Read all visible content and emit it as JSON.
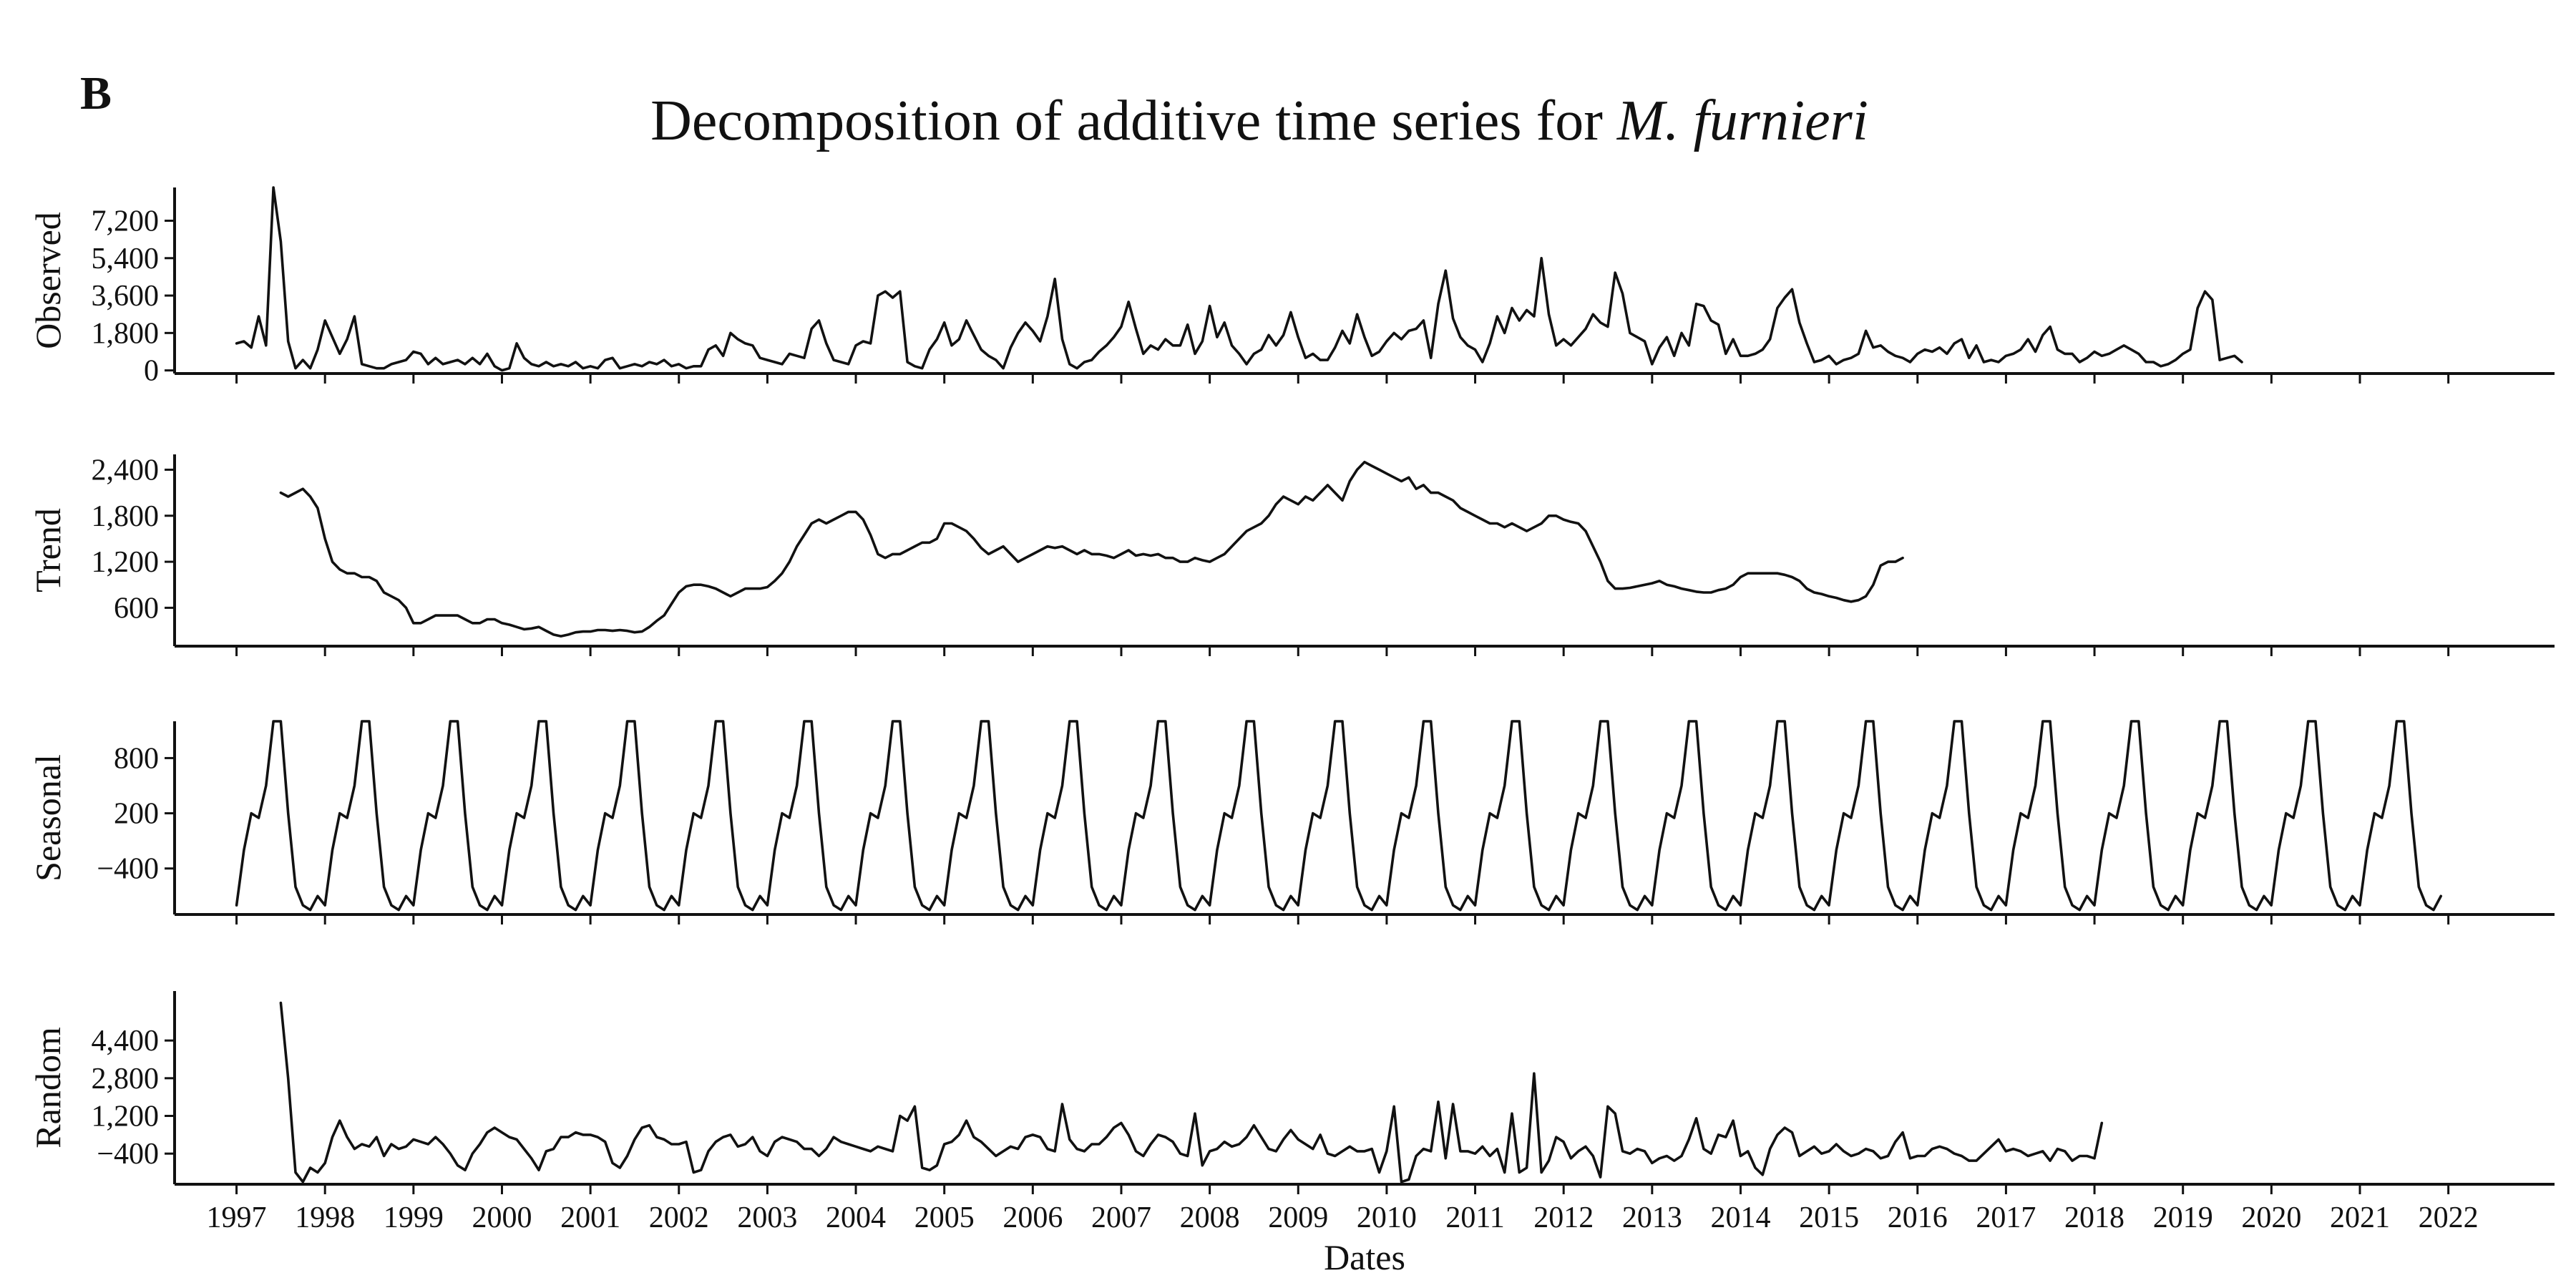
{
  "panel_label": "B",
  "title": {
    "prefix": "Decomposition of additive time series for ",
    "species": "M. furnieri"
  },
  "xlabel": "Dates",
  "x_ticks": [
    "1997",
    "1998",
    "1999",
    "2000",
    "2001",
    "2002",
    "2003",
    "2004",
    "2005",
    "2006",
    "2007",
    "2008",
    "2009",
    "2010",
    "2011",
    "2012",
    "2013",
    "2014",
    "2015",
    "2016",
    "2017",
    "2018",
    "2019",
    "2020",
    "2021",
    "2022"
  ],
  "colors": {
    "line": "#111111",
    "background": "#ffffff"
  },
  "chart_data": [
    {
      "type": "line",
      "name": "observed",
      "ylabel": "Observed",
      "xlim": [
        1996.3,
        2023.2
      ],
      "ylim": [
        -150,
        8800
      ],
      "yticks": [
        0,
        1800,
        3600,
        5400,
        7200
      ],
      "yticks_labels": [
        "0",
        "1,800",
        "3,600",
        "5,400",
        "7,200"
      ],
      "x_start": 1997.0,
      "x_step": 0.08333,
      "values": [
        1300,
        1400,
        1100,
        2600,
        1200,
        8800,
        6200,
        1400,
        100,
        500,
        100,
        1000,
        2400,
        1600,
        800,
        1500,
        2600,
        300,
        200,
        100,
        100,
        300,
        400,
        500,
        900,
        800,
        300,
        600,
        300,
        400,
        500,
        300,
        600,
        300,
        800,
        200,
        0,
        100,
        1300,
        600,
        300,
        200,
        400,
        200,
        300,
        200,
        400,
        100,
        200,
        100,
        500,
        600,
        100,
        200,
        300,
        200,
        400,
        300,
        500,
        200,
        300,
        100,
        200,
        200,
        1000,
        1200,
        700,
        1800,
        1500,
        1300,
        1200,
        600,
        500,
        400,
        300,
        800,
        700,
        600,
        2000,
        2400,
        1300,
        500,
        400,
        300,
        1200,
        1400,
        1300,
        3600,
        3800,
        3500,
        3800,
        400,
        200,
        100,
        1000,
        1500,
        2300,
        1200,
        1500,
        2400,
        1700,
        1000,
        700,
        500,
        100,
        1100,
        1800,
        2300,
        1900,
        1400,
        2600,
        4400,
        1500,
        300,
        100,
        400,
        500,
        900,
        1200,
        1600,
        2100,
        3300,
        2000,
        800,
        1200,
        1000,
        1500,
        1200,
        1200,
        2200,
        800,
        1400,
        3100,
        1600,
        2300,
        1200,
        800,
        300,
        800,
        1000,
        1700,
        1200,
        1700,
        2800,
        1600,
        600,
        800,
        500,
        500,
        1100,
        1900,
        1300,
        2700,
        1600,
        700,
        900,
        1400,
        1800,
        1500,
        1900,
        2000,
        2400,
        600,
        3200,
        4800,
        2500,
        1600,
        1200,
        1000,
        400,
        1300,
        2600,
        1800,
        3000,
        2400,
        2900,
        2600,
        5400,
        2700,
        1200,
        1500,
        1200,
        1600,
        2000,
        2700,
        2300,
        2100,
        4700,
        3700,
        1800,
        1600,
        1400,
        300,
        1100,
        1600,
        700,
        1800,
        1200,
        3200,
        3100,
        2400,
        2200,
        800,
        1500,
        700,
        700,
        800,
        1000,
        1500,
        3000,
        3500,
        3900,
        2300,
        1300,
        400,
        500,
        700,
        300,
        500,
        600,
        800,
        1900,
        1100,
        1200,
        900,
        700,
        600,
        400,
        800,
        1000,
        900,
        1100,
        800,
        1300,
        1500,
        600,
        1200,
        400,
        500,
        400,
        700,
        800,
        1000,
        1500,
        900,
        1700,
        2100,
        1000,
        800,
        800,
        400,
        600,
        900,
        700,
        800,
        1000,
        1200,
        1000,
        800,
        400,
        400,
        200,
        300,
        500,
        800,
        1000,
        3000,
        3800,
        3400,
        500,
        600,
        700,
        400
      ]
    },
    {
      "type": "line",
      "name": "trend",
      "ylabel": "Trend",
      "xlim": [
        1996.3,
        2023.2
      ],
      "ylim": [
        100,
        2600
      ],
      "yticks": [
        600,
        1200,
        1800,
        2400
      ],
      "yticks_labels": [
        "600",
        "1,200",
        "1,800",
        "2,400"
      ],
      "x_start": 1997.5,
      "x_step": 0.08333,
      "values": [
        2100,
        2050,
        2100,
        2150,
        2050,
        1900,
        1500,
        1200,
        1100,
        1050,
        1050,
        1000,
        1000,
        950,
        800,
        750,
        700,
        600,
        400,
        400,
        450,
        500,
        500,
        500,
        500,
        450,
        400,
        400,
        450,
        450,
        400,
        380,
        350,
        320,
        330,
        350,
        300,
        250,
        230,
        250,
        280,
        290,
        290,
        310,
        310,
        300,
        310,
        300,
        280,
        290,
        350,
        430,
        500,
        650,
        800,
        880,
        900,
        900,
        880,
        850,
        800,
        750,
        800,
        850,
        850,
        850,
        870,
        950,
        1050,
        1200,
        1400,
        1550,
        1700,
        1750,
        1700,
        1750,
        1800,
        1850,
        1850,
        1750,
        1550,
        1300,
        1250,
        1300,
        1300,
        1350,
        1400,
        1450,
        1450,
        1500,
        1700,
        1700,
        1650,
        1600,
        1500,
        1380,
        1300,
        1350,
        1400,
        1300,
        1200,
        1250,
        1300,
        1350,
        1400,
        1380,
        1400,
        1350,
        1300,
        1350,
        1300,
        1300,
        1280,
        1250,
        1300,
        1350,
        1280,
        1300,
        1280,
        1300,
        1250,
        1250,
        1200,
        1200,
        1250,
        1220,
        1200,
        1250,
        1300,
        1400,
        1500,
        1600,
        1650,
        1700,
        1800,
        1950,
        2050,
        2000,
        1950,
        2050,
        2000,
        2100,
        2200,
        2100,
        2000,
        2250,
        2400,
        2500,
        2450,
        2400,
        2350,
        2300,
        2250,
        2300,
        2150,
        2200,
        2100,
        2100,
        2050,
        2000,
        1900,
        1850,
        1800,
        1750,
        1700,
        1700,
        1650,
        1700,
        1650,
        1600,
        1650,
        1700,
        1800,
        1800,
        1750,
        1720,
        1700,
        1600,
        1400,
        1200,
        950,
        850,
        850,
        860,
        880,
        900,
        920,
        950,
        900,
        880,
        850,
        830,
        810,
        800,
        800,
        830,
        850,
        900,
        1000,
        1050,
        1050,
        1050,
        1050,
        1050,
        1030,
        1000,
        950,
        850,
        800,
        780,
        750,
        730,
        700,
        680,
        700,
        750,
        900,
        1150,
        1200,
        1200,
        1250
      ]
    },
    {
      "type": "line",
      "name": "seasonal",
      "ylabel": "Seasonal",
      "xlim": [
        1996.3,
        2023.2
      ],
      "ylim": [
        -900,
        1200
      ],
      "yticks": [
        -400,
        200,
        800
      ],
      "yticks_labels": [
        "−400",
        "200",
        "800"
      ],
      "x_start": 1997.0,
      "x_step": 0.08333,
      "pattern": [
        -800,
        -200,
        200,
        150,
        500,
        1200,
        1200,
        200,
        -600,
        -800,
        -850,
        -700
      ],
      "cycles": 25
    },
    {
      "type": "line",
      "name": "random",
      "ylabel": "Random",
      "xlim": [
        1996.3,
        2023.2
      ],
      "ylim": [
        -1700,
        6500
      ],
      "yticks": [
        -400,
        1200,
        2800,
        4400
      ],
      "yticks_labels": [
        "−400",
        "1,200",
        "2,800",
        "4,400"
      ],
      "x_start": 1997.5,
      "x_step": 0.08333,
      "values": [
        6000,
        2800,
        -1200,
        -1600,
        -1000,
        -1200,
        -800,
        300,
        1000,
        300,
        -200,
        0,
        -100,
        300,
        -500,
        0,
        -200,
        -100,
        200,
        100,
        0,
        300,
        0,
        -400,
        -900,
        -1100,
        -400,
        0,
        500,
        700,
        500,
        300,
        200,
        -200,
        -600,
        -1100,
        -300,
        -200,
        300,
        300,
        500,
        400,
        400,
        300,
        100,
        -800,
        -1000,
        -500,
        200,
        700,
        800,
        300,
        200,
        0,
        0,
        100,
        -1200,
        -1100,
        -300,
        100,
        300,
        400,
        -100,
        0,
        300,
        -300,
        -500,
        100,
        300,
        200,
        100,
        -200,
        -200,
        -500,
        -200,
        300,
        100,
        0,
        -100,
        -200,
        -300,
        -100,
        -200,
        -300,
        1200,
        1000,
        1600,
        -1000,
        -1100,
        -900,
        0,
        100,
        400,
        1000,
        300,
        100,
        -200,
        -500,
        -300,
        -100,
        -200,
        300,
        400,
        300,
        -200,
        -300,
        1700,
        200,
        -200,
        -300,
        0,
        0,
        300,
        700,
        900,
        400,
        -300,
        -500,
        0,
        400,
        300,
        100,
        -400,
        -500,
        1300,
        -900,
        -300,
        -200,
        100,
        -100,
        0,
        300,
        800,
        300,
        -200,
        -300,
        200,
        600,
        200,
        0,
        -200,
        400,
        -400,
        -500,
        -300,
        -100,
        -300,
        -300,
        -200,
        -1200,
        -300,
        1600,
        -1600,
        -1500,
        -500,
        -200,
        -300,
        1800,
        -600,
        1700,
        -300,
        -300,
        -400,
        -100,
        -500,
        -200,
        -1200,
        1300,
        -1200,
        -1000,
        3000,
        -1200,
        -700,
        300,
        100,
        -600,
        -300,
        -100,
        -500,
        -1400,
        1600,
        1300,
        -300,
        -400,
        -200,
        -300,
        -800,
        -600,
        -500,
        -700,
        -500,
        200,
        1100,
        -200,
        -400,
        400,
        300,
        1000,
        -500,
        -300,
        -1000,
        -1300,
        -200,
        400,
        700,
        500,
        -500,
        -300,
        -100,
        -400,
        -300,
        0,
        -300,
        -500,
        -400,
        -200,
        -300,
        -600,
        -500,
        100,
        500,
        -600,
        -500,
        -500,
        -200,
        -100,
        -200,
        -400,
        -500,
        -700,
        -700,
        -400,
        -100,
        200,
        -300,
        -200,
        -300,
        -500,
        -400,
        -300,
        -700,
        -200,
        -300,
        -700,
        -500,
        -500,
        -600,
        900
      ]
    }
  ]
}
